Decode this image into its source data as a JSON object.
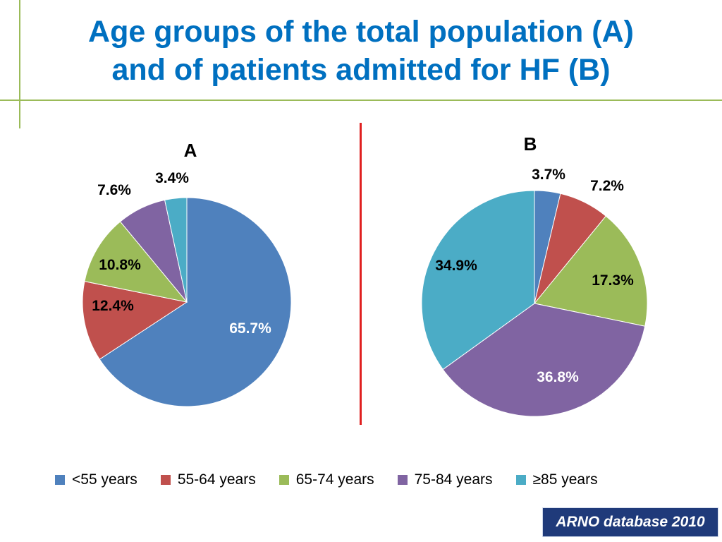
{
  "title_line1": "Age groups of the total population (A)",
  "title_line2": "and of patients admitted for HF (B)",
  "source": "ARNO database 2010",
  "colors": {
    "title": "#0070c0",
    "divider": "#e02020",
    "decor": "#9bbb59",
    "source_bg": "#1f3a7a"
  },
  "legend": [
    {
      "label": "<55 years",
      "color": "#4f81bd"
    },
    {
      "label": "55-64 years",
      "color": "#c0504d"
    },
    {
      "label": "65-74 years",
      "color": "#9bbb59"
    },
    {
      "label": "75-84 years",
      "color": "#8064a2"
    },
    {
      "label": "≥85 years",
      "color": "#4bacc6"
    }
  ],
  "chart_data": [
    {
      "type": "pie",
      "title": "A",
      "categories": [
        "<55 years",
        "55-64 years",
        "65-74 years",
        "75-84 years",
        "≥85 years"
      ],
      "values": [
        65.7,
        12.4,
        10.8,
        7.6,
        3.4
      ],
      "labels": [
        "65.7%",
        "12.4%",
        "10.8%",
        "7.6%",
        "3.4%"
      ],
      "label_colors": [
        "#ffffff",
        "#000000",
        "#000000",
        "#000000",
        "#000000"
      ],
      "start_angle_deg": 0,
      "direction": "clockwise"
    },
    {
      "type": "pie",
      "title": "B",
      "categories": [
        "<55 years",
        "55-64 years",
        "65-74 years",
        "75-84 years",
        "≥85 years"
      ],
      "values": [
        3.7,
        7.2,
        17.3,
        36.8,
        34.9
      ],
      "labels": [
        "3.7%",
        "7.2%",
        "17.3%",
        "36.8%",
        "34.9%"
      ],
      "label_colors": [
        "#000000",
        "#000000",
        "#000000",
        "#ffffff",
        "#000000"
      ],
      "start_angle_deg": 0,
      "direction": "clockwise"
    }
  ]
}
